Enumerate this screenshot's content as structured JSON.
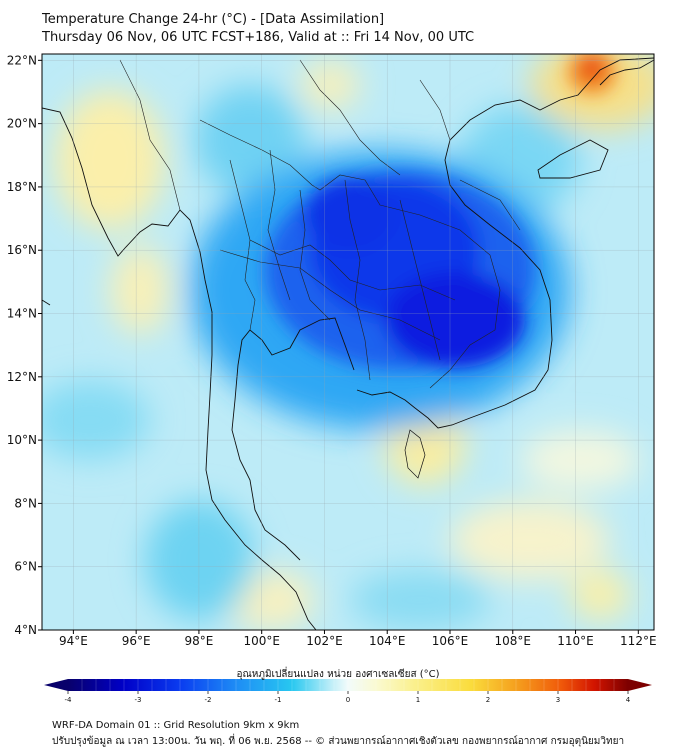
{
  "header": {
    "title_line1": "Temperature Change 24-hr (°C) - [Data Assimilation]",
    "title_line2": "Thursday 06 Nov, 06 UTC FCST+186, Valid at :: Fri 14 Nov, 00 UTC"
  },
  "map": {
    "lon_range": [
      93,
      112.5
    ],
    "lat_range": [
      4,
      22.2
    ],
    "lon_ticks": [
      {
        "v": 94,
        "label": "94°E"
      },
      {
        "v": 96,
        "label": "96°E"
      },
      {
        "v": 98,
        "label": "98°E"
      },
      {
        "v": 100,
        "label": "100°E"
      },
      {
        "v": 102,
        "label": "102°E"
      },
      {
        "v": 104,
        "label": "104°E"
      },
      {
        "v": 106,
        "label": "106°E"
      },
      {
        "v": 108,
        "label": "108°E"
      },
      {
        "v": 110,
        "label": "110°E"
      },
      {
        "v": 112,
        "label": "112°E"
      }
    ],
    "lat_ticks": [
      {
        "v": 22,
        "label": "22°N"
      },
      {
        "v": 20,
        "label": "20°N"
      },
      {
        "v": 18,
        "label": "18°N"
      },
      {
        "v": 16,
        "label": "16°N"
      },
      {
        "v": 14,
        "label": "14°N"
      },
      {
        "v": 12,
        "label": "12°N"
      },
      {
        "v": 10,
        "label": "10°N"
      },
      {
        "v": 8,
        "label": "8°N"
      },
      {
        "v": 6,
        "label": "6°N"
      },
      {
        "v": 4,
        "label": "4°N"
      }
    ]
  },
  "colorbar": {
    "label": "อุณหภูมิเปลี่ยนแปลง หน่วย องศาเซลเซียส (°C)",
    "min": -4,
    "max": 4,
    "ticks": [
      {
        "v": -4,
        "label": "-4"
      },
      {
        "v": -3,
        "label": "-3"
      },
      {
        "v": -2,
        "label": "-2"
      },
      {
        "v": -1,
        "label": "-1"
      },
      {
        "v": 0,
        "label": "0"
      },
      {
        "v": 1,
        "label": "1"
      },
      {
        "v": 2,
        "label": "2"
      },
      {
        "v": 3,
        "label": "3"
      },
      {
        "v": 4,
        "label": "4"
      }
    ],
    "colors": [
      "#08006b",
      "#0000c8",
      "#0a3cf0",
      "#1e8cf5",
      "#28c8f0",
      "#8ce4f5",
      "#dcf5fa",
      "#fafad2",
      "#faf08c",
      "#fadc3c",
      "#f5a01e",
      "#f05a0a",
      "#d21400",
      "#7d0000"
    ]
  },
  "footer": {
    "line1": "WRF-DA Domain 01 :: Grid Resolution 9km x 9km",
    "line2": "ปรับปรุงข้อมูล ณ เวลา 13:00น. วัน พฤ. ที่ 06 พ.ย. 2568 -- © ส่วนพยากรณ์อากาศเชิงตัวเลข กองพยากรณ์อากาศ กรมอุตุนิยมวิทยา"
  }
}
